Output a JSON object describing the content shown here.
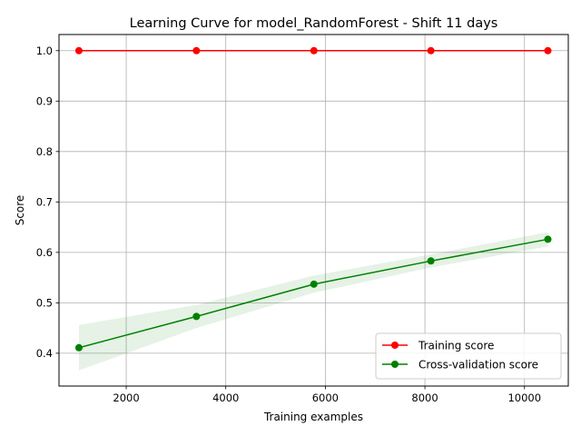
{
  "chart_data": {
    "type": "line",
    "title": "Learning Curve for model_RandomForest - Shift 11 days",
    "xlabel": "Training examples",
    "ylabel": "Score",
    "xlim": [
      650,
      10880
    ],
    "ylim": [
      0.335,
      1.032
    ],
    "xticks": [
      2000,
      4000,
      6000,
      8000,
      10000
    ],
    "yticks": [
      0.4,
      0.5,
      0.6,
      0.7,
      0.8,
      0.9,
      1.0
    ],
    "grid": true,
    "legend_position": "lower right",
    "x": [
      1050,
      3410,
      5770,
      8120,
      10470
    ],
    "series": [
      {
        "name": "Training score",
        "color": "#ff0000",
        "marker": "circle",
        "values": [
          1.0,
          1.0,
          1.0,
          1.0,
          1.0
        ],
        "band_low": [
          1.0,
          1.0,
          1.0,
          1.0,
          1.0
        ],
        "band_high": [
          1.0,
          1.0,
          1.0,
          1.0,
          1.0
        ]
      },
      {
        "name": "Cross-validation score",
        "color": "#008000",
        "marker": "circle",
        "values": [
          0.411,
          0.473,
          0.537,
          0.583,
          0.626
        ],
        "band_low": [
          0.366,
          0.45,
          0.52,
          0.57,
          0.612
        ],
        "band_high": [
          0.456,
          0.496,
          0.554,
          0.596,
          0.64
        ]
      }
    ]
  }
}
